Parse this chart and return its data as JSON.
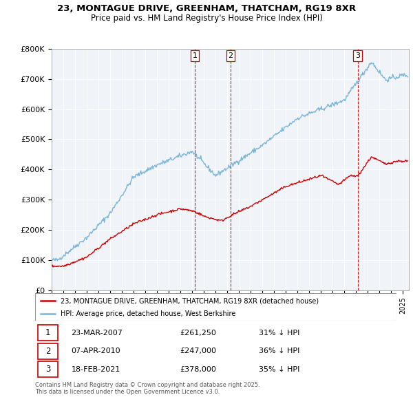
{
  "title_line1": "23, MONTAGUE DRIVE, GREENHAM, THATCHAM, RG19 8XR",
  "title_line2": "Price paid vs. HM Land Registry's House Price Index (HPI)",
  "ylim": [
    0,
    800000
  ],
  "yticks": [
    0,
    100000,
    200000,
    300000,
    400000,
    500000,
    600000,
    700000,
    800000
  ],
  "ytick_labels": [
    "£0",
    "£100K",
    "£200K",
    "£300K",
    "£400K",
    "£500K",
    "£600K",
    "£700K",
    "£800K"
  ],
  "hpi_color": "#7ab4d8",
  "price_color": "#cc0000",
  "vline_color": "#cc0000",
  "background_color": "#f0f4f8",
  "grid_color": "#ffffff",
  "legend_label_price": "23, MONTAGUE DRIVE, GREENHAM, THATCHAM, RG19 8XR (detached house)",
  "legend_label_hpi": "HPI: Average price, detached house, West Berkshire",
  "transactions": [
    {
      "num": 1,
      "date": "23-MAR-2007",
      "price": "£261,250",
      "pct": "31% ↓ HPI",
      "year": 2007.22
    },
    {
      "num": 2,
      "date": "07-APR-2010",
      "price": "£247,000",
      "pct": "36% ↓ HPI",
      "year": 2010.27
    },
    {
      "num": 3,
      "date": "18-FEB-2021",
      "price": "£378,000",
      "pct": "35% ↓ HPI",
      "year": 2021.13
    }
  ],
  "footnote": "Contains HM Land Registry data © Crown copyright and database right 2025.\nThis data is licensed under the Open Government Licence v3.0.",
  "xlim_start": 1995.0,
  "xlim_end": 2025.5
}
